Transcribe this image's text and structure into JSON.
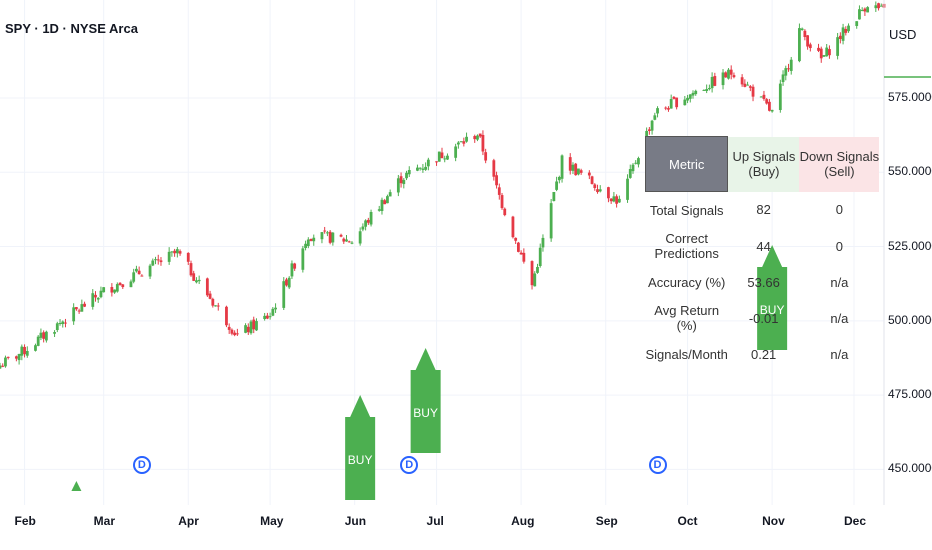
{
  "header": {
    "title": "SPY · 1D · NYSE Arca",
    "currency": "USD"
  },
  "colors": {
    "up": "#4caf50",
    "down": "#e53945",
    "grid": "#f0f3fa",
    "signal": "#4caf50",
    "badge": "#2962ff"
  },
  "chart_data": {
    "type": "candlestick",
    "y_ticks": [
      "575.00000",
      "550.00000",
      "525.00000",
      "500.00000",
      "475.00000",
      "450.00000"
    ],
    "ylim": [
      438,
      608
    ],
    "x_ticks": [
      "Feb",
      "Mar",
      "Apr",
      "May",
      "Jun",
      "Jul",
      "Aug",
      "Sep",
      "Oct",
      "Nov",
      "Dec"
    ],
    "x_range": [
      "2024-01-23",
      "2024-12-12"
    ],
    "close_anchors": [
      [
        "2024-01-23",
        485
      ],
      [
        "2024-02-01",
        490
      ],
      [
        "2024-02-15",
        500
      ],
      [
        "2024-03-01",
        510
      ],
      [
        "2024-03-28",
        523
      ],
      [
        "2024-04-19",
        495
      ],
      [
        "2024-05-01",
        502
      ],
      [
        "2024-05-15",
        529
      ],
      [
        "2024-05-31",
        527
      ],
      [
        "2024-06-18",
        548
      ],
      [
        "2024-07-16",
        563
      ],
      [
        "2024-07-24",
        542
      ],
      [
        "2024-08-05",
        512
      ],
      [
        "2024-08-16",
        554
      ],
      [
        "2024-09-06",
        540
      ],
      [
        "2024-09-19",
        570
      ],
      [
        "2024-10-18",
        584
      ],
      [
        "2024-11-01",
        570
      ],
      [
        "2024-11-11",
        598
      ],
      [
        "2024-11-19",
        588
      ],
      [
        "2024-12-06",
        607
      ],
      [
        "2024-12-12",
        604
      ]
    ],
    "signals": [
      {
        "label": "BUY",
        "date": "2024-06-03"
      },
      {
        "label": "BUY",
        "date": "2024-06-27"
      },
      {
        "label": "BUY",
        "date": "2024-11-01"
      }
    ],
    "small_markers": [
      {
        "date": "2024-02-20"
      }
    ],
    "dividends": [
      {
        "label": "D",
        "date": "2024-03-15"
      },
      {
        "label": "D",
        "date": "2024-06-21"
      },
      {
        "label": "D",
        "date": "2024-09-20"
      }
    ]
  },
  "table": {
    "headers": [
      "Metric",
      "Up Signals (Buy)",
      "Down Signals (Sell)"
    ],
    "rows": [
      [
        "Total Signals",
        "82",
        "0"
      ],
      [
        "Correct Predictions",
        "44",
        "0"
      ],
      [
        "Accuracy (%)",
        "53.66",
        "n/a"
      ],
      [
        "Avg Return (%)",
        "-0.01",
        "n/a"
      ],
      [
        "Signals/Month",
        "0.21",
        "n/a"
      ]
    ]
  }
}
